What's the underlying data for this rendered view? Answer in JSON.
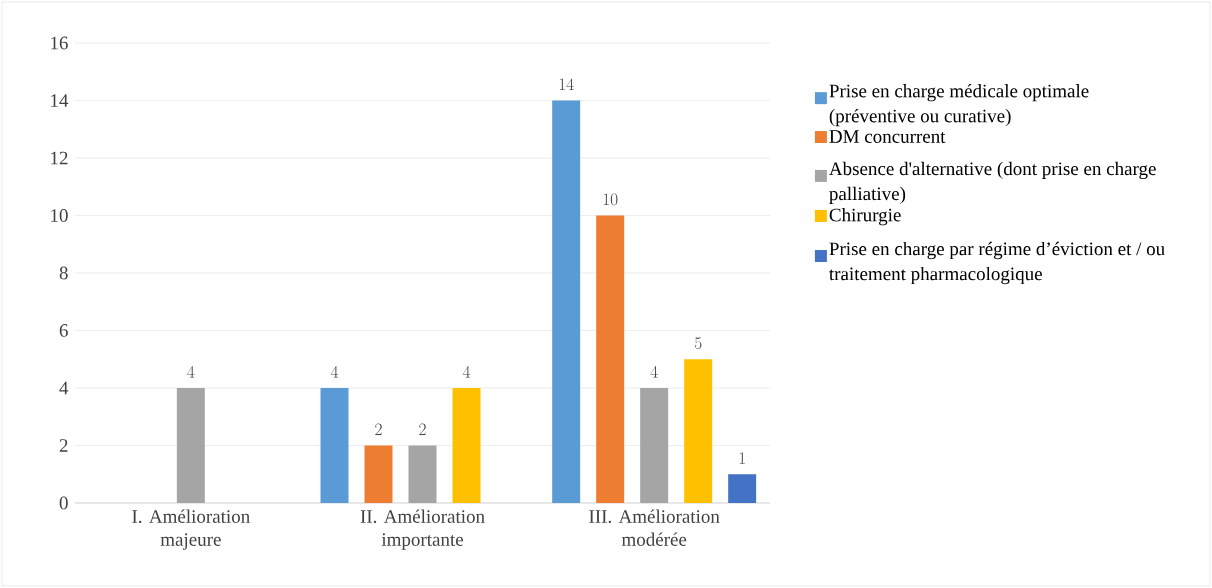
{
  "chart_data": {
    "type": "bar",
    "categories": [
      "I. Amélioration majeure",
      "II. Amélioration importante",
      "III. Amélioration modérée"
    ],
    "series": [
      {
        "name": "Prise en charge médicale optimale (préventive ou curative)",
        "color": "#5b9bd5",
        "values": [
          null,
          4,
          14
        ]
      },
      {
        "name": "DM concurrent",
        "color": "#ed7d31",
        "values": [
          null,
          2,
          10
        ]
      },
      {
        "name": "Absence d'alternative (dont prise en charge palliative)",
        "color": "#a5a5a5",
        "values": [
          4,
          2,
          4
        ]
      },
      {
        "name": "Chirurgie",
        "color": "#ffc000",
        "values": [
          null,
          4,
          5
        ]
      },
      {
        "name": "Prise en charge par régime d’éviction et / ou traitement pharmacologique",
        "color": "#4472c4",
        "values": [
          null,
          null,
          1
        ]
      }
    ],
    "ylim": [
      0,
      16
    ],
    "yticks": [
      0,
      2,
      4,
      6,
      8,
      10,
      12,
      14,
      16
    ],
    "grid": "y",
    "legend": "right",
    "data_labels": true
  }
}
